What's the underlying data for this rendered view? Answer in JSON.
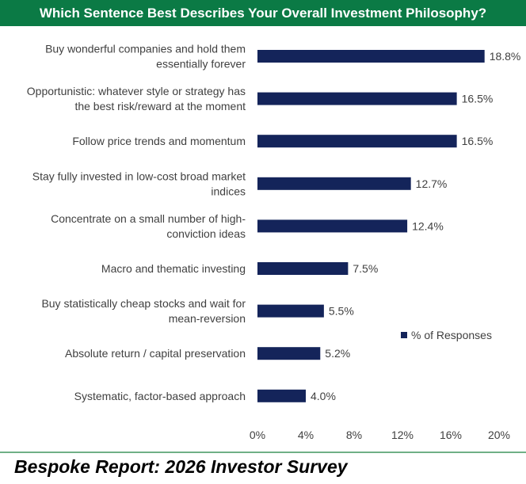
{
  "title": "Which Sentence Best Describes Your Overall Investment Philosophy?",
  "footer": "Bespoke Report: 2026 Investor Survey",
  "colors": {
    "title_bg": "#0b7a45",
    "bar": "#14245a",
    "footer_rule": "#6fb086"
  },
  "chart_data": {
    "type": "bar",
    "orientation": "horizontal",
    "categories": [
      [
        "Buy wonderful companies and hold them",
        "essentially forever"
      ],
      [
        "Opportunistic: whatever style or strategy has",
        "the best risk/reward at the moment"
      ],
      [
        "Follow price trends and momentum"
      ],
      [
        "Stay fully invested in low-cost broad market",
        "indices"
      ],
      [
        "Concentrate on a small number of high-",
        "conviction ideas"
      ],
      [
        "Macro and thematic investing"
      ],
      [
        "Buy statistically cheap stocks and wait for",
        "mean-reversion"
      ],
      [
        "Absolute return / capital preservation"
      ],
      [
        "Systematic, factor-based approach"
      ]
    ],
    "series": [
      {
        "name": "% of Responses",
        "values": [
          18.8,
          16.5,
          16.5,
          12.7,
          12.4,
          7.5,
          5.5,
          5.2,
          4.0
        ],
        "labels": [
          "18.8%",
          "16.5%",
          "16.5%",
          "12.7%",
          "12.4%",
          "7.5%",
          "5.5%",
          "5.2%",
          "4.0%"
        ]
      }
    ],
    "xlim": [
      0,
      20
    ],
    "x_ticks": [
      0,
      4,
      8,
      12,
      16,
      20
    ],
    "x_tick_labels": [
      "0%",
      "4%",
      "8%",
      "12%",
      "16%",
      "20%"
    ],
    "grid": false,
    "legend_position": "right"
  }
}
